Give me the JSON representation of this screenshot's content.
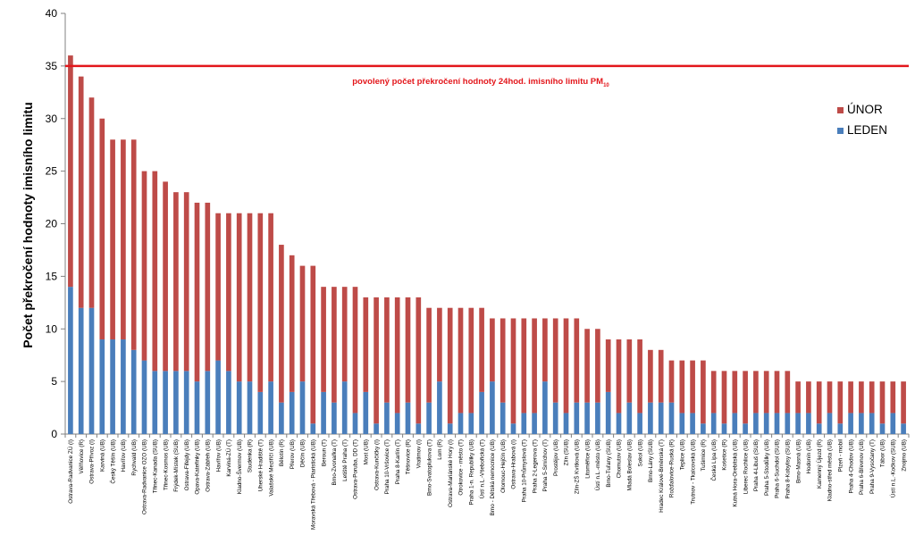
{
  "chart_data": {
    "type": "bar",
    "stacked": true,
    "ylabel": "Počet překročení hodnoty imisního limitu",
    "ylim": [
      0,
      40
    ],
    "yticks": [
      0,
      5,
      10,
      15,
      20,
      25,
      30,
      35,
      40
    ],
    "grid": false,
    "legend_position": "right",
    "limit_line": {
      "value": 35,
      "label": "povolený počet překročení hodnoty 24hod. imisního limitu PM",
      "label_sub": "10",
      "color": "#e3161b"
    },
    "categories": [
      "Ostrava-Radvanice ZÚ (I)",
      "Věřňovice (R)",
      "Ostrava-Přívoz (I)",
      "Karviná (UB)",
      "Český Těšín (UB)",
      "Havířov (UB)",
      "Rychvald (UB)",
      "Ostrava-Radvanice OZO (UB)",
      "Třinec-Kanada (SUB)",
      "Třinec-Kosmos (UB)",
      "Frýdek-Místek (SUB)",
      "Ostrava-Fifejdy (UB)",
      "Opava-Kateřinky (UB)",
      "Ostrava-Zábřeh (UB)",
      "Havířov (UB)",
      "Karviná-ZÚ (T)",
      "Kladno-Švermov (UB)",
      "Studénka (R)",
      "Uherské Hradiště (T)",
      "Valašské Meziříčí (UB)",
      "Bělotín (R)",
      "Přerov (UB)",
      "Děčín (UB)",
      "Moravská Třebová - Piaristická (UB)",
      "Beroun (T)",
      "Brno-Zvonařka (T)",
      "Letiště Praha (T)",
      "Ostrava-Poruba, DD (T)",
      "Most (UB)",
      "Ostrava-Kunčičky (I)",
      "Praha 10-Vršovice (T)",
      "Praha 8-Karlín (T)",
      "Těšnovice (R)",
      "Vratimov (I)",
      "Brno-Svatoplukova (T)",
      "Lom (R)",
      "Ostrava-Mariánské Hory (I)",
      "Otrokovice - město (T)",
      "Praha 1-n. Republiky (UB)",
      "Ústí n.L.-Všebořická (T)",
      "Brno - Dětská nemocnice (UB)",
      "Olomouc-Hejčín (UB)",
      "Ostrava-Hrabová (I)",
      "Praha 10-Průmyslová (T)",
      "Praha 2-Legerova (T)",
      "Praha 5-Smíchov (T)",
      "Prostějov (UB)",
      "Zlín (SUB)",
      "Zlín-ZŠ Kvítková (UB)",
      "Litoměřice (UB)",
      "Ústí n.L.-město (UB)",
      "Brno-Tuřany (SUB)",
      "Chomutov (UB)",
      "Mladá Boleslav (UB)",
      "Sokol (UB)",
      "Brno-Lány (SUB)",
      "Hradec Králové-Brněnská (T)",
      "Rožďalovice-Ruská (R)",
      "Teplice (UB)",
      "Trutnov - Tkalcovská (UB)",
      "Tušimice (R)",
      "Česká Lípa (UB)",
      "Kośetice (R)",
      "Kutná Hora-Orebitská (UB)",
      "Liberec Rochlice (UB)",
      "Praha 4-Libuš (SUB)",
      "Praha 5-Stodůlky (UB)",
      "Praha 6-Suchdol (SUB)",
      "Praha 8-Kobylisy (SUB)",
      "Brno-Masná (UB)",
      "Hodonín (UB)",
      "Kamenný Újezd (R)",
      "Kladno-střed města (UB)",
      "Plzeň - mobil",
      "Praha 4-Chodov (UB)",
      "Praha 6-Břevnov (UB)",
      "Praha 9-Vysočany (T)",
      "Tábor (UB)",
      "Ústí n.L.-Kočkov (SUB)",
      "Znojmo (UB)"
    ],
    "series": [
      {
        "name": "LEDEN",
        "color": "#4a7ebb",
        "values": [
          14,
          12,
          12,
          9,
          9,
          9,
          8,
          7,
          6,
          6,
          6,
          6,
          5,
          6,
          7,
          6,
          5,
          5,
          4,
          5,
          3,
          4,
          5,
          1,
          4,
          3,
          5,
          2,
          4,
          1,
          3,
          2,
          3,
          1,
          3,
          5,
          1,
          2,
          2,
          4,
          5,
          3,
          1,
          2,
          2,
          5,
          3,
          2,
          3,
          3,
          3,
          4,
          2,
          3,
          2,
          3,
          3,
          3,
          2,
          2,
          1,
          2,
          1,
          2,
          1,
          2,
          2,
          2,
          2,
          2,
          2,
          1,
          2,
          1,
          2,
          2,
          2,
          1,
          2,
          1
        ]
      },
      {
        "name": "ÚNOR",
        "color": "#be4b48",
        "values": [
          22,
          22,
          20,
          21,
          19,
          19,
          20,
          18,
          19,
          18,
          17,
          17,
          17,
          16,
          14,
          15,
          16,
          16,
          17,
          16,
          15,
          13,
          11,
          15,
          10,
          11,
          9,
          12,
          9,
          12,
          10,
          11,
          10,
          12,
          9,
          7,
          11,
          10,
          10,
          8,
          6,
          8,
          10,
          9,
          9,
          6,
          8,
          9,
          8,
          7,
          7,
          5,
          7,
          6,
          7,
          5,
          5,
          4,
          5,
          5,
          6,
          4,
          5,
          4,
          5,
          4,
          4,
          4,
          4,
          3,
          3,
          4,
          3,
          4,
          3,
          3,
          3,
          4,
          3,
          4
        ]
      }
    ]
  }
}
